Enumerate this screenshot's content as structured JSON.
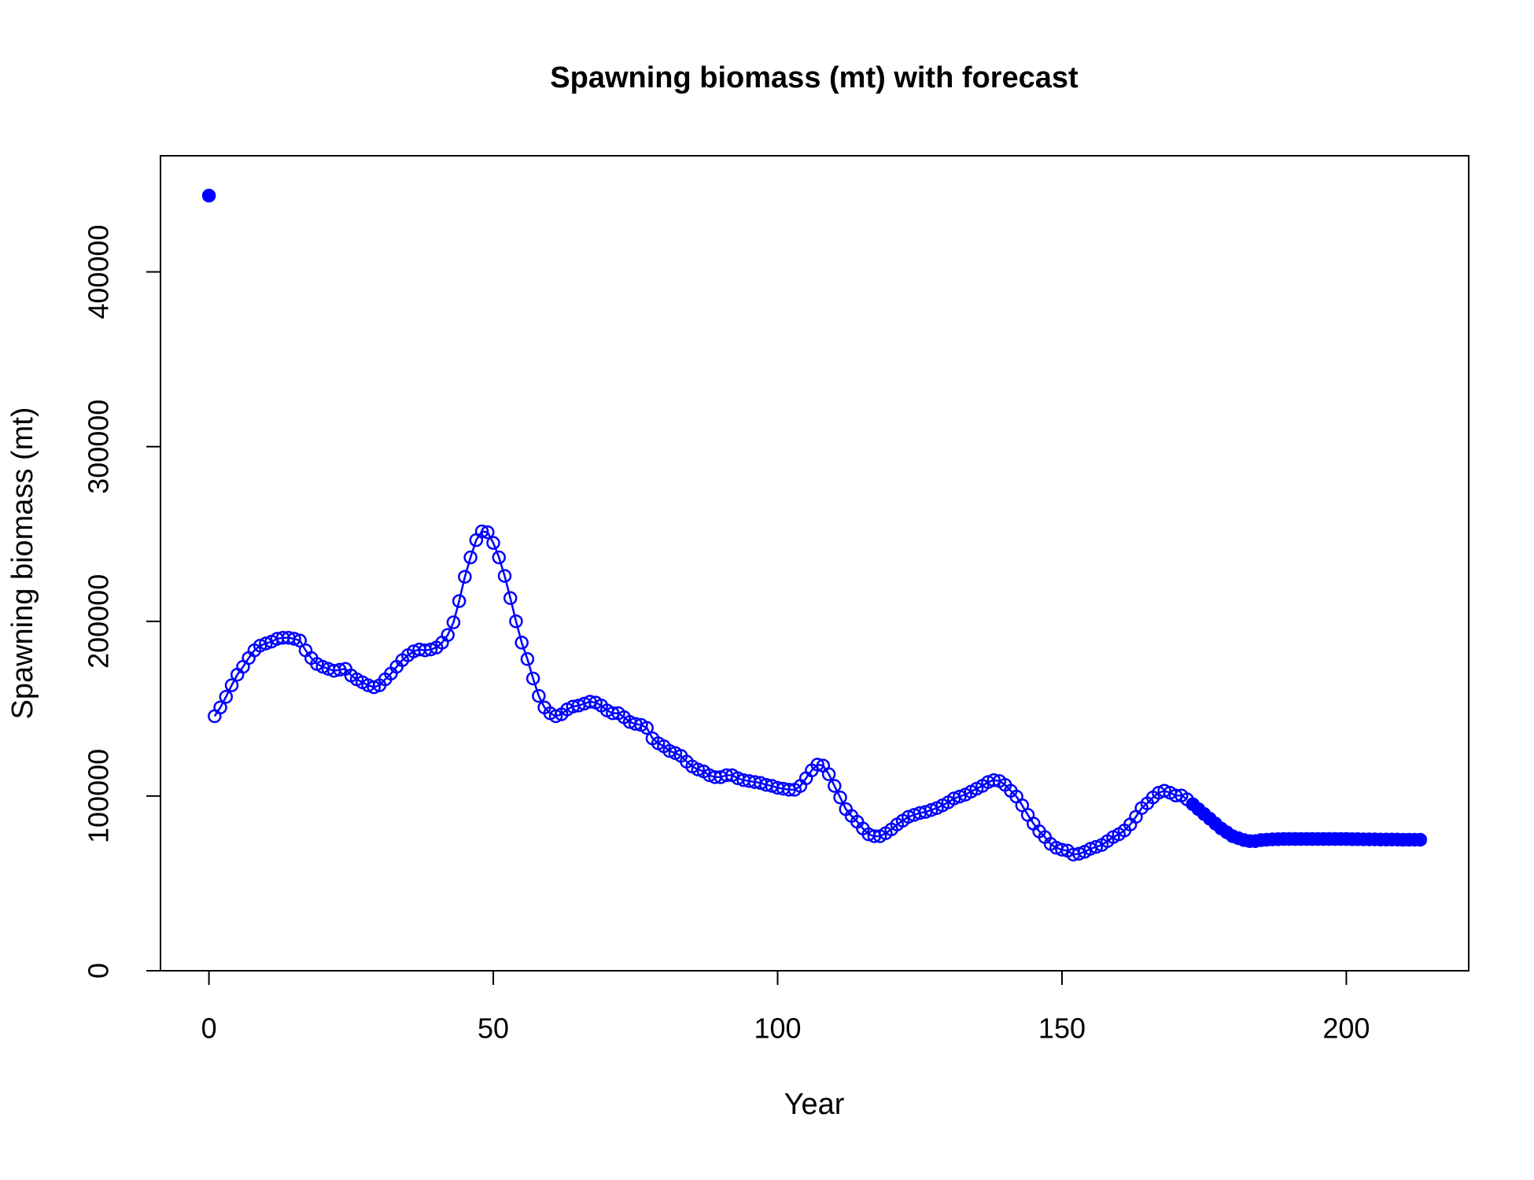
{
  "chart_data": {
    "type": "scatter",
    "title": "Spawning biomass (mt) with forecast",
    "x_label": "Year",
    "y_label": "Spawning biomass (mt)",
    "xlim": [
      -8.52,
      221.52
    ],
    "ylim": [
      0,
      466500
    ],
    "xticks": [
      0,
      50,
      100,
      150,
      200
    ],
    "yticks": [
      0,
      100000,
      200000,
      300000,
      400000
    ],
    "series": [
      {
        "color": "#0000ff",
        "marker": "filled",
        "line": false,
        "x": [
          0
        ],
        "values": [
          443700
        ]
      },
      {
        "color": "#0000ff",
        "marker": "open",
        "line": true,
        "x": [
          1,
          2,
          3,
          4,
          5,
          6,
          7,
          8,
          9,
          10,
          11,
          12,
          13,
          14,
          15,
          16,
          17,
          18,
          19,
          20,
          21,
          22,
          23,
          24,
          25,
          26,
          27,
          28,
          29,
          30,
          31,
          32,
          33,
          34,
          35,
          36,
          37,
          38,
          39,
          40,
          41,
          42,
          43,
          44,
          45,
          46,
          47,
          48,
          49,
          50,
          51,
          52,
          53,
          54,
          55,
          56,
          57,
          58,
          59,
          60,
          61,
          62,
          63,
          64,
          65,
          66,
          67,
          68,
          69,
          70,
          71,
          72,
          73,
          74,
          75,
          76,
          77,
          78,
          79,
          80,
          81,
          82,
          83,
          84,
          85,
          86,
          87,
          88,
          89,
          90,
          91,
          92,
          93,
          94,
          95,
          96,
          97,
          98,
          99,
          100,
          101,
          102,
          103,
          104,
          105,
          106,
          107,
          108,
          109,
          110,
          111,
          112,
          113,
          114,
          115,
          116,
          117,
          118,
          119,
          120,
          121,
          122,
          123,
          124,
          125,
          126,
          127,
          128,
          129,
          130,
          131,
          132,
          133,
          134,
          135,
          136,
          137,
          138,
          139,
          140,
          141,
          142,
          143,
          144,
          145,
          146,
          147,
          148,
          149,
          150,
          151,
          152,
          153,
          154,
          155,
          156,
          157,
          158,
          159,
          160,
          161,
          162,
          163,
          164,
          165,
          166,
          167,
          168,
          169,
          170,
          171,
          172
        ],
        "values": [
          145700,
          150700,
          156800,
          163400,
          169500,
          174000,
          179000,
          183400,
          186100,
          187300,
          188400,
          190000,
          190600,
          190600,
          190000,
          189000,
          183400,
          179000,
          175600,
          174000,
          172800,
          171700,
          172300,
          172800,
          169000,
          166800,
          165100,
          163400,
          162300,
          163400,
          166800,
          170100,
          174000,
          177800,
          180600,
          182800,
          183900,
          183400,
          183900,
          185000,
          187800,
          192200,
          199400,
          211600,
          225500,
          236600,
          246500,
          251500,
          251000,
          244900,
          236600,
          226000,
          213300,
          200000,
          187800,
          178400,
          167300,
          157300,
          150700,
          147400,
          145700,
          146800,
          149600,
          151200,
          151800,
          152900,
          154000,
          153500,
          151800,
          149000,
          147400,
          147400,
          145100,
          142400,
          141300,
          140700,
          139000,
          133000,
          130200,
          128500,
          125800,
          124600,
          123000,
          119700,
          116900,
          115200,
          114100,
          111900,
          110800,
          110800,
          111900,
          111900,
          110200,
          109100,
          108600,
          108000,
          107500,
          106400,
          105800,
          104700,
          104200,
          103600,
          103600,
          105800,
          110200,
          114700,
          118000,
          117400,
          112500,
          105800,
          99200,
          92500,
          88600,
          85300,
          81400,
          78100,
          77000,
          77000,
          78700,
          80900,
          83700,
          85900,
          88100,
          89200,
          90300,
          90900,
          92000,
          93100,
          94700,
          96400,
          98600,
          99700,
          100800,
          102500,
          104200,
          105800,
          108000,
          109100,
          108600,
          106400,
          103000,
          99700,
          94700,
          89200,
          84200,
          79800,
          76500,
          72600,
          70400,
          69300,
          68700,
          66500,
          67000,
          68100,
          69800,
          70900,
          72000,
          74200,
          76500,
          78100,
          80300,
          83700,
          88100,
          93100,
          95800,
          99200,
          101900,
          103000,
          101900,
          100300,
          100300,
          98100
        ]
      },
      {
        "color": "#0000ff",
        "marker": "filled",
        "line": true,
        "x": [
          173,
          174,
          175,
          176,
          177,
          178,
          179,
          180,
          181,
          182,
          183,
          184,
          185,
          186,
          187,
          188,
          189,
          190,
          191,
          192,
          193,
          194,
          195,
          196,
          197,
          198,
          199,
          200,
          201,
          202,
          203,
          204,
          205,
          206,
          207,
          208,
          209,
          210,
          211,
          212,
          213
        ],
        "values": [
          95300,
          92500,
          89700,
          87000,
          84200,
          81400,
          79200,
          77000,
          75900,
          74800,
          74200,
          74200,
          74800,
          75000,
          75200,
          75300,
          75400,
          75400,
          75400,
          75400,
          75400,
          75400,
          75400,
          75400,
          75400,
          75400,
          75400,
          75400,
          75300,
          75300,
          75200,
          75200,
          75200,
          75100,
          75100,
          75100,
          75100,
          75000,
          75000,
          75000,
          75000
        ]
      }
    ]
  }
}
